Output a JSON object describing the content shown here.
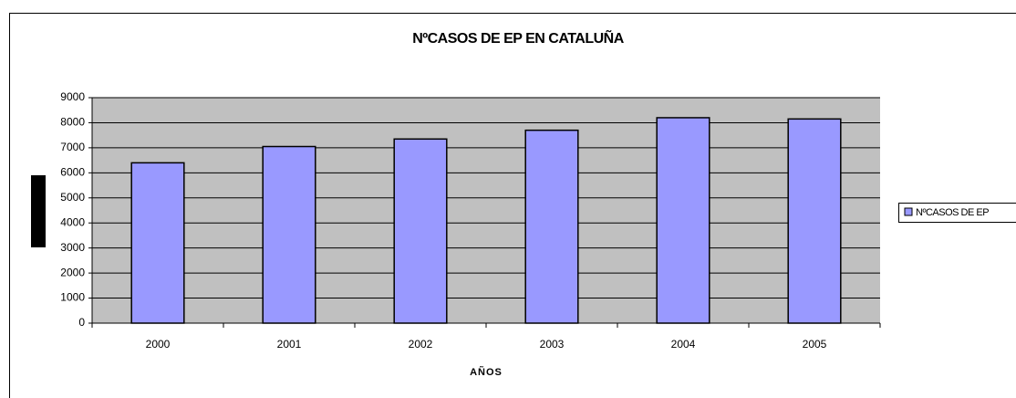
{
  "chart_data": {
    "type": "bar",
    "title": "NºCASOS DE EP EN CATALUÑA",
    "x_label": "AÑOS",
    "categories": [
      "2000",
      "2001",
      "2002",
      "2003",
      "2004",
      "2005"
    ],
    "series": [
      {
        "name": "NºCASOS DE EP",
        "color": "#9999ff",
        "values": [
          6400,
          7050,
          7350,
          7700,
          8200,
          8150
        ]
      }
    ],
    "ylim": [
      0,
      9000
    ],
    "yticks": [
      0,
      1000,
      2000,
      3000,
      4000,
      5000,
      6000,
      7000,
      8000,
      9000
    ],
    "grid": true,
    "legend": "right"
  }
}
